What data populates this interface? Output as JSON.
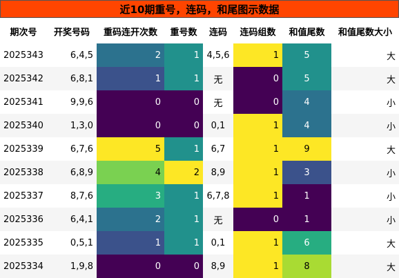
{
  "title": "近10期重号，连码，和尾图示数据",
  "columns": [
    "期次号",
    "开奖号码",
    "重码连开次数",
    "重号数",
    "连码",
    "连码组数",
    "和值尾数",
    "和值尾数大小"
  ],
  "colors": {
    "c0": "#440154",
    "c1": "#3b528b",
    "c2": "#2c728e",
    "c3": "#21918c",
    "c4": "#7ad151",
    "c5": "#fde725",
    "c6": "#27ad81",
    "c8": "#a9db33",
    "c9": "#fde725",
    "title_bg": "#ff4500"
  },
  "rows": [
    {
      "issue": "2025343",
      "numbers": "6,4,5",
      "repeat_streak": "2",
      "repeat_count": "1",
      "consecutive": "4,5,6",
      "consec_groups": "1",
      "sum_tail": "5",
      "tail_size": "大"
    },
    {
      "issue": "2025342",
      "numbers": "6,8,1",
      "repeat_streak": "1",
      "repeat_count": "1",
      "consecutive": "无",
      "consec_groups": "0",
      "sum_tail": "5",
      "tail_size": "大"
    },
    {
      "issue": "2025341",
      "numbers": "9,9,6",
      "repeat_streak": "0",
      "repeat_count": "0",
      "consecutive": "无",
      "consec_groups": "0",
      "sum_tail": "4",
      "tail_size": "小"
    },
    {
      "issue": "2025340",
      "numbers": "1,3,0",
      "repeat_streak": "0",
      "repeat_count": "0",
      "consecutive": "0,1",
      "consec_groups": "1",
      "sum_tail": "4",
      "tail_size": "小"
    },
    {
      "issue": "2025339",
      "numbers": "6,7,6",
      "repeat_streak": "5",
      "repeat_count": "1",
      "consecutive": "6,7",
      "consec_groups": "1",
      "sum_tail": "9",
      "tail_size": "大"
    },
    {
      "issue": "2025338",
      "numbers": "6,8,9",
      "repeat_streak": "4",
      "repeat_count": "2",
      "consecutive": "8,9",
      "consec_groups": "1",
      "sum_tail": "3",
      "tail_size": "小"
    },
    {
      "issue": "2025337",
      "numbers": "8,7,6",
      "repeat_streak": "3",
      "repeat_count": "1",
      "consecutive": "6,7,8",
      "consec_groups": "1",
      "sum_tail": "1",
      "tail_size": "小"
    },
    {
      "issue": "2025336",
      "numbers": "6,4,1",
      "repeat_streak": "2",
      "repeat_count": "1",
      "consecutive": "无",
      "consec_groups": "0",
      "sum_tail": "1",
      "tail_size": "小"
    },
    {
      "issue": "2025335",
      "numbers": "0,5,1",
      "repeat_streak": "1",
      "repeat_count": "1",
      "consecutive": "0,1",
      "consec_groups": "1",
      "sum_tail": "6",
      "tail_size": "大"
    },
    {
      "issue": "2025334",
      "numbers": "1,9,8",
      "repeat_streak": "0",
      "repeat_count": "0",
      "consecutive": "8,9",
      "consec_groups": "1",
      "sum_tail": "8",
      "tail_size": "大"
    }
  ]
}
